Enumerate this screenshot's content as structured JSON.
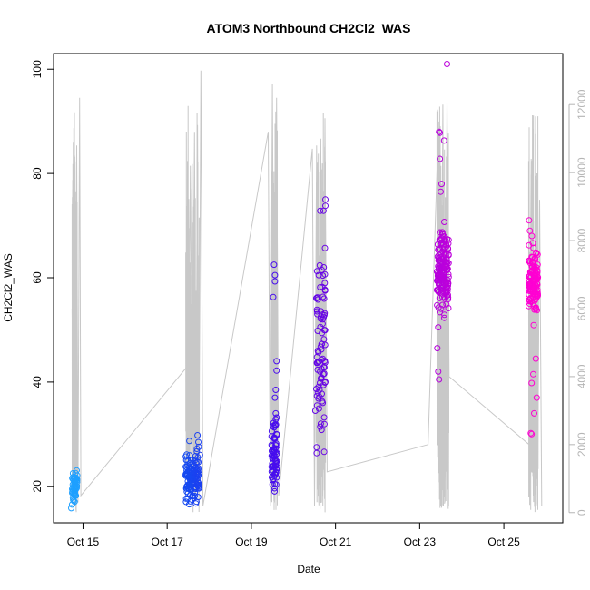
{
  "chart_data": {
    "type": "scatter",
    "title": "ATOM3 Northbound CH2Cl2_WAS",
    "xlabel": "Date",
    "ylabel": "CH2Cl2_WAS",
    "x_unit": "day of October 2017 (fractional)",
    "xlim": [
      14.3,
      26.4
    ],
    "ylim": [
      13,
      103
    ],
    "y2lim": [
      -300,
      13500
    ],
    "x_ticks": [
      15,
      17,
      19,
      21,
      23,
      25
    ],
    "x_tick_labels": [
      "Oct 15",
      "Oct 17",
      "Oct 19",
      "Oct 21",
      "Oct 23",
      "Oct 25"
    ],
    "y_ticks": [
      20,
      40,
      60,
      80,
      100
    ],
    "y_tick_labels": [
      "20",
      "40",
      "60",
      "80",
      "100"
    ],
    "y2_ticks": [
      0,
      2000,
      4000,
      6000,
      8000,
      10000,
      12000
    ],
    "y2_tick_labels": [
      "0",
      "2000",
      "4000",
      "6000",
      "8000",
      "10000",
      "12000"
    ],
    "grid": false,
    "legend": "none",
    "colors": {
      "marker_gradient": [
        "#1ea0ff",
        "#0a5af0",
        "#3c10f0",
        "#7a00e0",
        "#b800dc",
        "#ff00d2"
      ],
      "altitude_line": "#c8c8c8",
      "axis": "#000000",
      "right_axis": "#b5b5b5"
    },
    "clusters": [
      {
        "center": 14.8,
        "width": 0.12,
        "mean": 20.2,
        "sd": 1.3,
        "n": 55,
        "extras": [
          [
            14.72,
            15.8
          ],
          [
            14.74,
            16.5
          ],
          [
            14.78,
            17.2
          ],
          [
            14.86,
            22.1
          ]
        ]
      },
      {
        "center": 17.6,
        "width": 0.32,
        "mean": 21.8,
        "sd": 2.3,
        "n": 130,
        "extras": [
          [
            17.55,
            17.1
          ],
          [
            17.68,
            16.7
          ],
          [
            17.72,
            29.8
          ],
          [
            17.74,
            28.5
          ],
          [
            17.78,
            26.0
          ]
        ]
      },
      {
        "center": 19.55,
        "width": 0.14,
        "mean": 25.5,
        "sd": 3.5,
        "n": 70,
        "extras": [
          [
            19.54,
            62.5
          ],
          [
            19.56,
            60.5
          ],
          [
            19.56,
            59.3
          ],
          [
            19.52,
            56.3
          ],
          [
            19.6,
            44.0
          ],
          [
            19.6,
            42.2
          ],
          [
            19.58,
            38.5
          ],
          [
            19.56,
            37.0
          ],
          [
            19.58,
            34.0
          ],
          [
            19.6,
            33.2
          ]
        ]
      },
      {
        "center": 20.65,
        "width": 0.22,
        "mean": 44.0,
        "sd": 10.0,
        "n": 85,
        "extras": [
          [
            20.76,
            75.0
          ],
          [
            20.76,
            73.8
          ],
          [
            20.75,
            65.7
          ],
          [
            20.72,
            62.0
          ],
          [
            20.6,
            60.5
          ],
          [
            20.58,
            56.2
          ],
          [
            20.52,
            34.5
          ],
          [
            20.55,
            27.5
          ]
        ]
      },
      {
        "center": 23.55,
        "width": 0.28,
        "mean": 61.5,
        "sd": 3.6,
        "n": 170,
        "extras": [
          [
            23.65,
            101.0
          ],
          [
            23.46,
            88.0
          ],
          [
            23.48,
            87.8
          ],
          [
            23.58,
            86.3
          ],
          [
            23.48,
            82.8
          ],
          [
            23.52,
            78.0
          ],
          [
            23.5,
            76.5
          ],
          [
            23.44,
            50.5
          ],
          [
            23.42,
            46.5
          ],
          [
            23.44,
            42.0
          ],
          [
            23.46,
            40.5
          ]
        ]
      },
      {
        "center": 25.7,
        "width": 0.22,
        "mean": 59.5,
        "sd": 3.3,
        "n": 130,
        "extras": [
          [
            25.6,
            71.0
          ],
          [
            25.62,
            69.0
          ],
          [
            25.76,
            44.5
          ],
          [
            25.7,
            41.5
          ],
          [
            25.66,
            39.8
          ],
          [
            25.78,
            37.0
          ],
          [
            25.72,
            34.0
          ],
          [
            25.64,
            30.2
          ],
          [
            25.66,
            30.0
          ]
        ]
      }
    ],
    "altitude_track": {
      "points": [
        [
          14.74,
          6000
        ],
        [
          14.78,
          500
        ],
        [
          14.8,
          10500
        ],
        [
          14.82,
          200
        ],
        [
          14.85,
          10800
        ],
        [
          14.88,
          300
        ],
        [
          14.92,
          12200
        ],
        [
          14.95,
          500
        ],
        [
          17.48,
          4300
        ],
        [
          17.52,
          3500
        ],
        [
          17.55,
          10200
        ],
        [
          17.6,
          2500
        ],
        [
          17.65,
          11200
        ],
        [
          17.68,
          500
        ],
        [
          17.72,
          11400
        ],
        [
          17.75,
          200
        ],
        [
          17.8,
          13000
        ],
        [
          17.85,
          200
        ],
        [
          19.4,
          11200
        ],
        [
          19.45,
          200
        ],
        [
          19.5,
          12600
        ],
        [
          19.55,
          300
        ],
        [
          19.6,
          12200
        ],
        [
          19.65,
          500
        ],
        [
          20.45,
          10700
        ],
        [
          20.5,
          200
        ],
        [
          20.55,
          10800
        ],
        [
          20.6,
          300
        ],
        [
          20.65,
          11000
        ],
        [
          20.7,
          200
        ],
        [
          20.75,
          11600
        ],
        [
          20.8,
          1200
        ],
        [
          23.2,
          2000
        ],
        [
          23.45,
          11500
        ],
        [
          23.5,
          200
        ],
        [
          23.55,
          12000
        ],
        [
          23.6,
          300
        ],
        [
          23.65,
          12100
        ],
        [
          23.7,
          4000
        ],
        [
          25.6,
          2000
        ],
        [
          25.65,
          10400
        ],
        [
          25.7,
          500
        ],
        [
          25.75,
          9000
        ],
        [
          25.8,
          200
        ],
        [
          25.85,
          9200
        ],
        [
          25.9,
          200
        ]
      ]
    }
  }
}
